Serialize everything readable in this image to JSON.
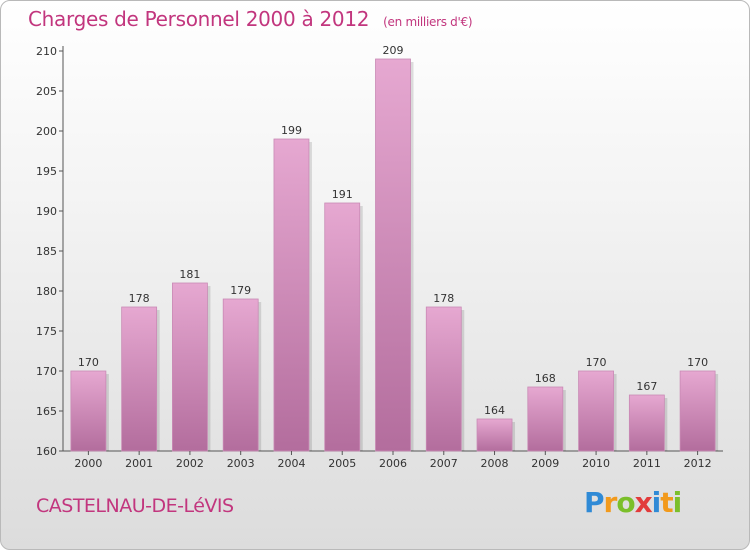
{
  "title": "Charges de Personnel 2000 à 2012",
  "subtitle": "(en milliers d'€)",
  "commune": "CASTELNAU-DE-LéVIS",
  "logo": {
    "letters": [
      "P",
      "r",
      "o",
      "x",
      "i",
      "t",
      "i"
    ],
    "colors": [
      "#2f8ad6",
      "#f29a1c",
      "#7bbf2a",
      "#e23b3b",
      "#2f8ad6",
      "#f29a1c",
      "#7bbf2a"
    ]
  },
  "colors": {
    "bar_top": "#e6a8d1",
    "bar_bottom": "#b36d9d",
    "accent": "#c2367e"
  },
  "chart_data": {
    "type": "bar",
    "categories": [
      "2000",
      "2001",
      "2002",
      "2003",
      "2004",
      "2005",
      "2006",
      "2007",
      "2008",
      "2009",
      "2010",
      "2011",
      "2012"
    ],
    "values": [
      170,
      178,
      181,
      179,
      199,
      191,
      209,
      178,
      164,
      168,
      170,
      167,
      170
    ],
    "ylim": [
      160,
      210
    ],
    "yticks": [
      160,
      165,
      170,
      175,
      180,
      185,
      190,
      195,
      200,
      205,
      210
    ],
    "grid": false
  }
}
